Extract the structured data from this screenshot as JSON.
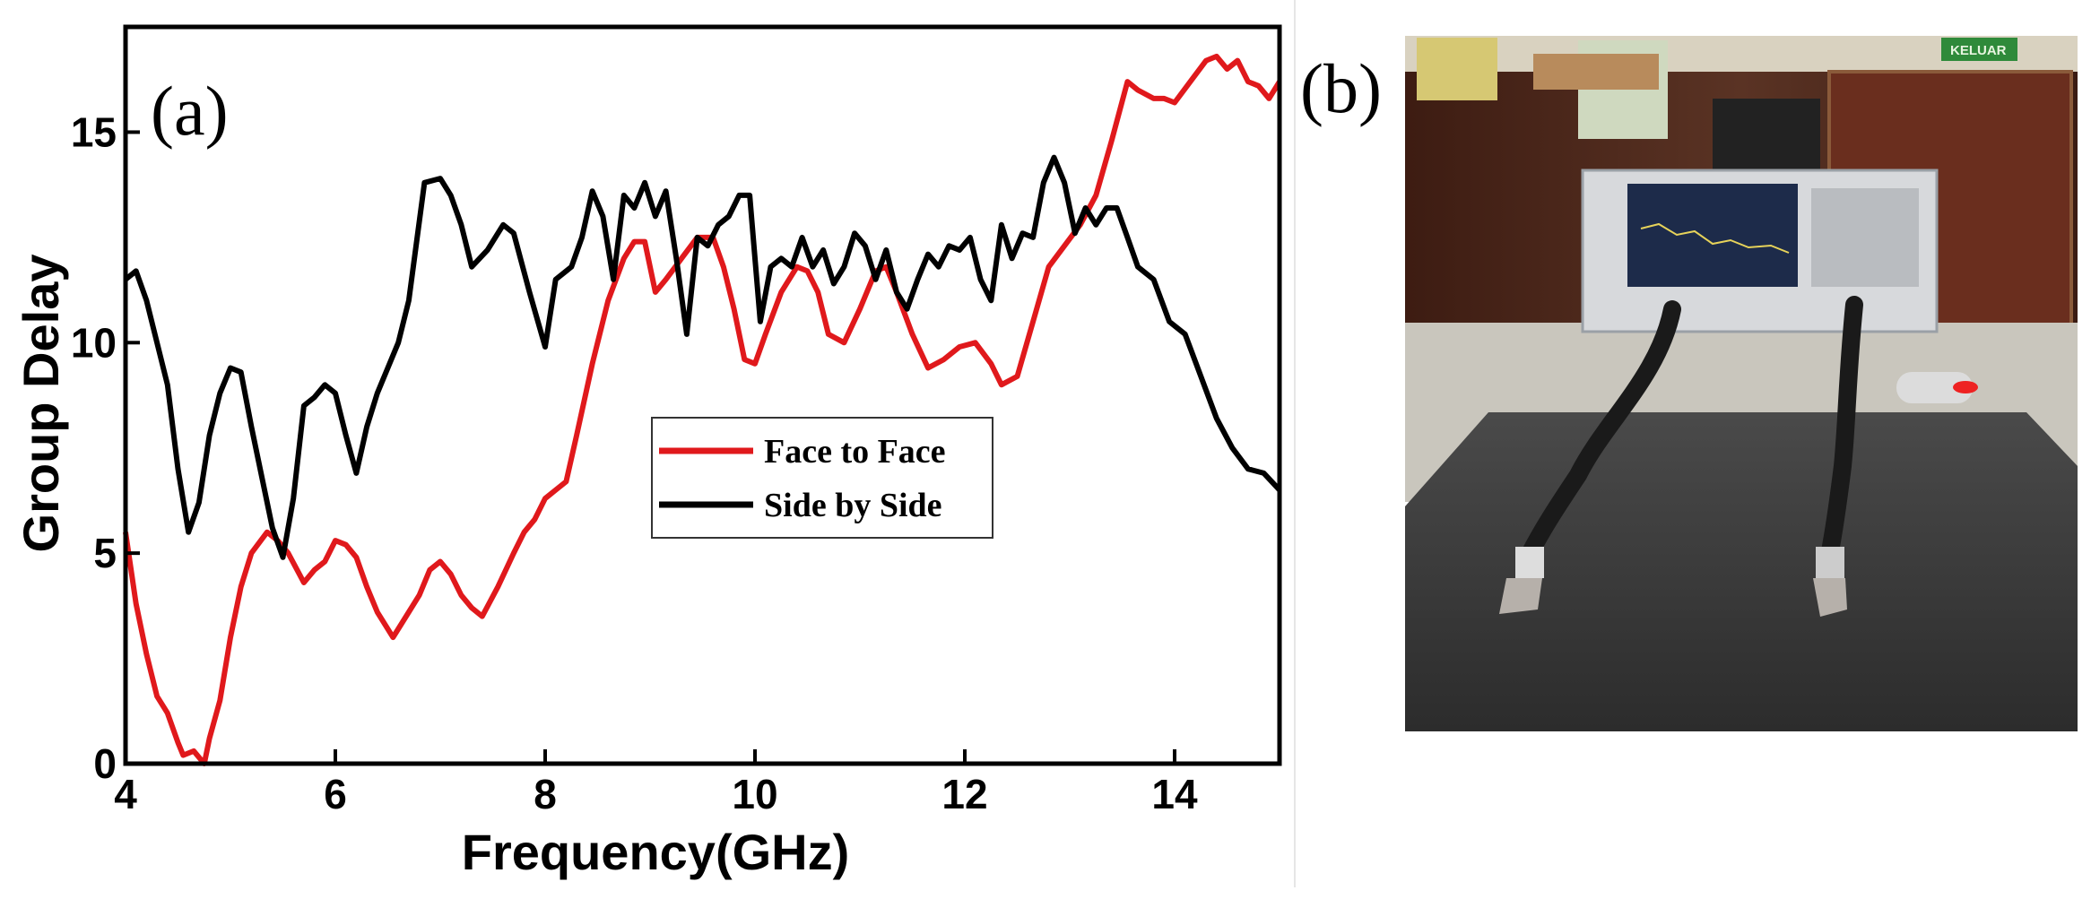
{
  "figure": {
    "panel_a_label": "(a)",
    "panel_b_label": "(b)",
    "photo_sign_text": "KELUAR"
  },
  "colors": {
    "face_to_face": "#e0191c",
    "side_by_side": "#000000",
    "photo_foam": "#3a3a3a",
    "photo_wall": "#4a2418"
  },
  "chart_data": {
    "type": "line",
    "title": "",
    "xlabel": "Frequency(GHz)",
    "ylabel": "Group Delay",
    "xlim": [
      4,
      15
    ],
    "ylim": [
      0,
      17.5
    ],
    "xticks": [
      4,
      6,
      8,
      10,
      12,
      14
    ],
    "yticks": [
      0,
      5,
      10,
      15
    ],
    "legend": {
      "placement": "center-right"
    },
    "series": [
      {
        "name": "Face to Face",
        "color": "#e0191c",
        "x": [
          4.0,
          4.1,
          4.2,
          4.3,
          4.4,
          4.5,
          4.55,
          4.65,
          4.75,
          4.8,
          4.9,
          5.0,
          5.1,
          5.2,
          5.35,
          5.45,
          5.55,
          5.7,
          5.8,
          5.9,
          6.0,
          6.1,
          6.2,
          6.3,
          6.4,
          6.55,
          6.7,
          6.8,
          6.9,
          7.0,
          7.1,
          7.2,
          7.3,
          7.4,
          7.55,
          7.7,
          7.8,
          7.9,
          8.0,
          8.1,
          8.2,
          8.3,
          8.45,
          8.6,
          8.75,
          8.85,
          8.95,
          9.05,
          9.15,
          9.3,
          9.45,
          9.6,
          9.7,
          9.8,
          9.9,
          10.0,
          10.1,
          10.25,
          10.4,
          10.5,
          10.6,
          10.7,
          10.85,
          11.0,
          11.15,
          11.25,
          11.35,
          11.5,
          11.65,
          11.8,
          11.95,
          12.1,
          12.25,
          12.35,
          12.5,
          12.65,
          12.8,
          12.95,
          13.1,
          13.25,
          13.4,
          13.55,
          13.65,
          13.8,
          13.9,
          14.0,
          14.15,
          14.3,
          14.4,
          14.5,
          14.6,
          14.7,
          14.8,
          14.9,
          15.0
        ],
        "values": [
          5.5,
          3.8,
          2.6,
          1.6,
          1.2,
          0.5,
          0.2,
          0.3,
          0.0,
          0.6,
          1.5,
          3.0,
          4.2,
          5.0,
          5.5,
          5.3,
          5.0,
          4.3,
          4.6,
          4.8,
          5.3,
          5.2,
          4.9,
          4.2,
          3.6,
          3.0,
          3.6,
          4.0,
          4.6,
          4.8,
          4.5,
          4.0,
          3.7,
          3.5,
          4.2,
          5.0,
          5.5,
          5.8,
          6.3,
          6.5,
          6.7,
          7.8,
          9.5,
          11.0,
          12.0,
          12.4,
          12.4,
          11.2,
          11.5,
          12.0,
          12.5,
          12.5,
          11.8,
          10.8,
          9.6,
          9.5,
          10.2,
          11.2,
          11.8,
          11.7,
          11.2,
          10.2,
          10.0,
          10.8,
          11.7,
          11.8,
          11.2,
          10.2,
          9.4,
          9.6,
          9.9,
          10.0,
          9.5,
          9.0,
          9.2,
          10.5,
          11.8,
          12.3,
          12.8,
          13.5,
          14.8,
          16.2,
          16.0,
          15.8,
          15.8,
          15.7,
          16.2,
          16.7,
          16.8,
          16.5,
          16.7,
          16.2,
          16.1,
          15.8,
          16.2
        ]
      },
      {
        "name": "Side by Side",
        "color": "#000000",
        "x": [
          4.0,
          4.1,
          4.2,
          4.3,
          4.4,
          4.5,
          4.6,
          4.7,
          4.8,
          4.9,
          5.0,
          5.1,
          5.2,
          5.3,
          5.4,
          5.5,
          5.6,
          5.7,
          5.8,
          5.9,
          6.0,
          6.1,
          6.2,
          6.3,
          6.4,
          6.5,
          6.6,
          6.7,
          6.85,
          7.0,
          7.1,
          7.2,
          7.3,
          7.45,
          7.6,
          7.7,
          7.85,
          8.0,
          8.1,
          8.25,
          8.35,
          8.45,
          8.55,
          8.65,
          8.75,
          8.85,
          8.95,
          9.05,
          9.15,
          9.25,
          9.35,
          9.45,
          9.55,
          9.65,
          9.75,
          9.85,
          9.95,
          10.05,
          10.15,
          10.25,
          10.35,
          10.45,
          10.55,
          10.65,
          10.75,
          10.85,
          10.95,
          11.05,
          11.15,
          11.25,
          11.35,
          11.45,
          11.55,
          11.65,
          11.75,
          11.85,
          11.95,
          12.05,
          12.15,
          12.25,
          12.35,
          12.45,
          12.55,
          12.65,
          12.75,
          12.85,
          12.95,
          13.05,
          13.15,
          13.25,
          13.35,
          13.45,
          13.55,
          13.65,
          13.8,
          13.95,
          14.1,
          14.25,
          14.4,
          14.55,
          14.7,
          14.85,
          15.0
        ],
        "values": [
          11.5,
          11.7,
          11.0,
          10.0,
          9.0,
          7.0,
          5.5,
          6.2,
          7.8,
          8.8,
          9.4,
          9.3,
          8.0,
          6.8,
          5.6,
          4.9,
          6.3,
          8.5,
          8.7,
          9.0,
          8.8,
          7.8,
          6.9,
          8.0,
          8.8,
          9.4,
          10.0,
          11.0,
          13.8,
          13.9,
          13.5,
          12.8,
          11.8,
          12.2,
          12.8,
          12.6,
          11.2,
          9.9,
          11.5,
          11.8,
          12.5,
          13.6,
          13.0,
          11.5,
          13.5,
          13.2,
          13.8,
          13.0,
          13.6,
          12.0,
          10.2,
          12.5,
          12.3,
          12.8,
          13.0,
          13.5,
          13.5,
          10.5,
          11.8,
          12.0,
          11.8,
          12.5,
          11.8,
          12.2,
          11.4,
          11.8,
          12.6,
          12.3,
          11.5,
          12.2,
          11.2,
          10.8,
          11.5,
          12.1,
          11.8,
          12.3,
          12.2,
          12.5,
          11.5,
          11.0,
          12.8,
          12.0,
          12.6,
          12.5,
          13.8,
          14.4,
          13.8,
          12.6,
          13.2,
          12.8,
          13.2,
          13.2,
          12.5,
          11.8,
          11.5,
          10.5,
          10.2,
          9.2,
          8.2,
          7.5,
          7.0,
          6.9,
          6.5
        ]
      }
    ]
  }
}
